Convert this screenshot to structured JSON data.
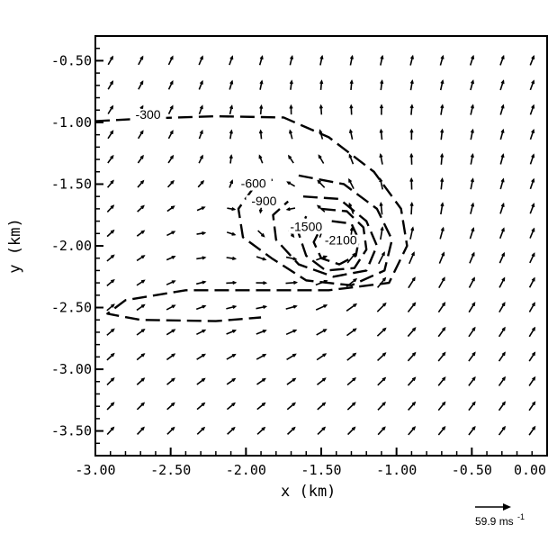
{
  "chart_data": {
    "type": "vector-field-contour",
    "title": "",
    "xlabel": "x  (km)",
    "ylabel": "y  (km)",
    "xlim": [
      -3.0,
      0.0
    ],
    "ylim": [
      -3.7,
      -0.3
    ],
    "xticks": [
      {
        "value": -3.0,
        "label": "-3.00"
      },
      {
        "value": -2.5,
        "label": "-2.50"
      },
      {
        "value": -2.0,
        "label": "-2.00"
      },
      {
        "value": -1.5,
        "label": "-1.50"
      },
      {
        "value": -1.0,
        "label": "-1.00"
      },
      {
        "value": -0.5,
        "label": "-0.50"
      },
      {
        "value": 0.0,
        "label": "0.00"
      }
    ],
    "yticks": [
      {
        "value": -0.5,
        "label": "-0.50"
      },
      {
        "value": -1.0,
        "label": "-1.00"
      },
      {
        "value": -1.5,
        "label": "-1.50"
      },
      {
        "value": -2.0,
        "label": "-2.00"
      },
      {
        "value": -2.5,
        "label": "-2.50"
      },
      {
        "value": -3.0,
        "label": "-3.00"
      },
      {
        "value": -3.5,
        "label": "-3.50"
      }
    ],
    "reference_vector": {
      "label": "59.9 ms",
      "superscript": "-1",
      "speed": 59.9
    },
    "vortex_center": [
      -1.45,
      -1.95
    ],
    "contours": [
      {
        "level": "-300",
        "label": "-300",
        "label_at": [
          -2.65,
          -0.97
        ],
        "points": [
          [
            -3.0,
            -0.99
          ],
          [
            -2.7,
            -0.97
          ],
          [
            -2.2,
            -0.95
          ],
          [
            -1.75,
            -0.96
          ],
          [
            -1.45,
            -1.12
          ],
          [
            -1.15,
            -1.4
          ],
          [
            -0.97,
            -1.7
          ],
          [
            -0.93,
            -2.0
          ],
          [
            -1.05,
            -2.3
          ],
          [
            -1.45,
            -2.36
          ],
          [
            -1.9,
            -2.36
          ],
          [
            -2.4,
            -2.36
          ],
          [
            -2.8,
            -2.44
          ],
          [
            -2.92,
            -2.55
          ],
          [
            -2.7,
            -2.6
          ],
          [
            -2.2,
            -2.61
          ],
          [
            -1.9,
            -2.58
          ]
        ]
      },
      {
        "level": "-600",
        "label": "-600",
        "label_at": [
          -1.95,
          -1.53
        ],
        "points": [
          [
            -1.65,
            -1.43
          ],
          [
            -1.35,
            -1.5
          ],
          [
            -1.13,
            -1.7
          ],
          [
            -1.03,
            -1.95
          ],
          [
            -1.08,
            -2.2
          ],
          [
            -1.3,
            -2.32
          ],
          [
            -1.6,
            -2.28
          ],
          [
            -1.83,
            -2.1
          ],
          [
            -2.02,
            -1.93
          ],
          [
            -2.05,
            -1.7
          ],
          [
            -1.95,
            -1.53
          ],
          [
            -1.8,
            -1.45
          ]
        ]
      },
      {
        "level": "-900",
        "label": "-900",
        "label_at": [
          -1.88,
          -1.67
        ],
        "points": [
          [
            -1.62,
            -1.6
          ],
          [
            -1.38,
            -1.62
          ],
          [
            -1.2,
            -1.8
          ],
          [
            -1.13,
            -2.0
          ],
          [
            -1.2,
            -2.2
          ],
          [
            -1.42,
            -2.25
          ],
          [
            -1.65,
            -2.15
          ],
          [
            -1.8,
            -1.95
          ],
          [
            -1.82,
            -1.75
          ],
          [
            -1.72,
            -1.64
          ]
        ]
      },
      {
        "level": "-1500",
        "label": "-1500",
        "label_at": [
          -1.6,
          -1.88
        ],
        "points": [
          [
            -1.5,
            -1.7
          ],
          [
            -1.33,
            -1.72
          ],
          [
            -1.22,
            -1.85
          ],
          [
            -1.2,
            -2.03
          ],
          [
            -1.28,
            -2.18
          ],
          [
            -1.47,
            -2.2
          ],
          [
            -1.6,
            -2.08
          ],
          [
            -1.65,
            -1.9
          ],
          [
            -1.6,
            -1.76
          ]
        ]
      },
      {
        "level": "-2100",
        "label": "-2100",
        "label_at": [
          -1.37,
          -1.99
        ],
        "points": [
          [
            -1.43,
            -1.8
          ],
          [
            -1.3,
            -1.82
          ],
          [
            -1.25,
            -1.95
          ],
          [
            -1.27,
            -2.08
          ],
          [
            -1.38,
            -2.15
          ],
          [
            -1.5,
            -2.1
          ],
          [
            -1.55,
            -1.97
          ],
          [
            -1.5,
            -1.85
          ]
        ]
      }
    ],
    "vectors": {
      "x_start": -2.9,
      "y_start": -0.5,
      "spacing": 0.2,
      "ncols": 15,
      "nrows": 16,
      "direction_deg_by_row_col": "computed: counterclockwise swirl about vortex_center plus a uniform flow toward the upper-right"
    }
  }
}
